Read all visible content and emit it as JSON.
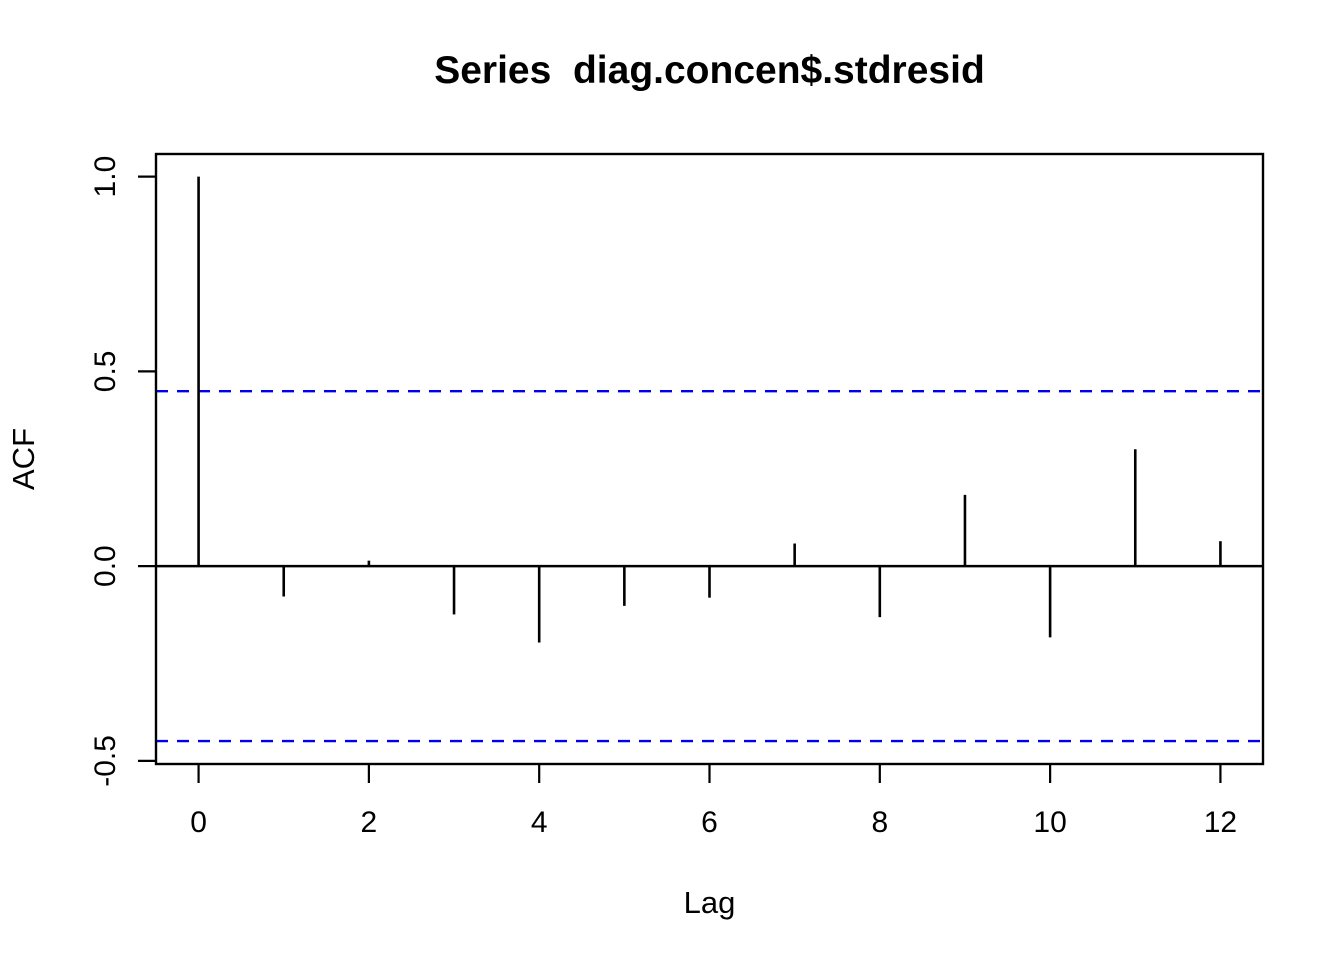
{
  "chart_data": {
    "type": "bar",
    "subtype": "acf-stem-plot",
    "title": "Series  diag.concen$.stdresid",
    "xlabel": "Lag",
    "ylabel": "ACF",
    "x": [
      0,
      1,
      2,
      3,
      4,
      5,
      6,
      7,
      8,
      9,
      10,
      11,
      12
    ],
    "values": [
      1.0,
      -0.078,
      0.014,
      -0.124,
      -0.196,
      -0.102,
      -0.081,
      0.058,
      -0.131,
      0.183,
      -0.183,
      0.3,
      0.064
    ],
    "confidence_bound": 0.449,
    "x_ticks": [
      0,
      2,
      4,
      6,
      8,
      10,
      12
    ],
    "y_ticks": [
      -0.5,
      0.0,
      0.5,
      1.0
    ],
    "xlim": [
      -0.5,
      12.5
    ],
    "ylim": [
      -0.508,
      1.058
    ],
    "grid": false,
    "legend": "none",
    "colors": {
      "spike": "#000000",
      "axis": "#000000",
      "confidence_line": "#0000EE",
      "background": "#FFFFFF"
    }
  }
}
